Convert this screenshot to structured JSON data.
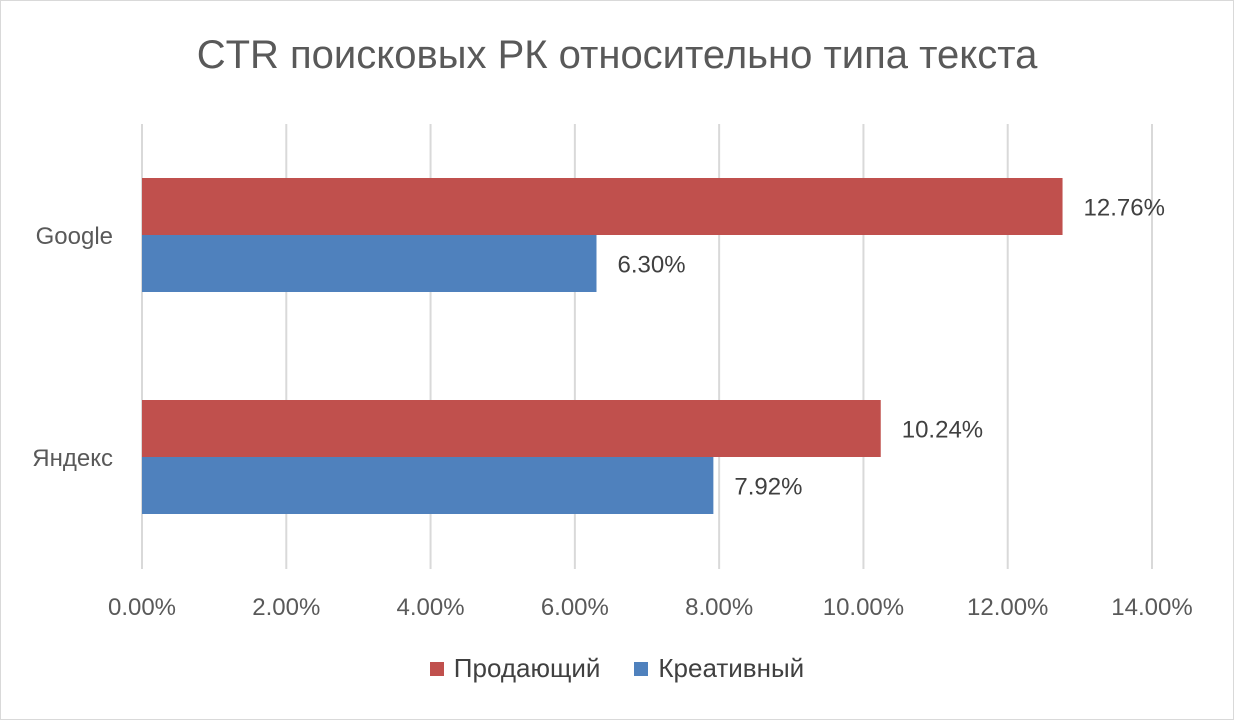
{
  "chart_data": {
    "type": "bar",
    "orientation": "horizontal",
    "title": "CTR поисковых РК относительно типа текста",
    "categories": [
      "Google",
      "Яндекс"
    ],
    "series": [
      {
        "name": "Продающий",
        "values": [
          12.76,
          10.24
        ],
        "labels": [
          "12.76%",
          "10.24%"
        ],
        "color": "#c0504d"
      },
      {
        "name": "Креативный",
        "values": [
          6.3,
          7.92
        ],
        "labels": [
          "6.30%",
          "7.92%"
        ],
        "color": "#4f81bd"
      }
    ],
    "xlim": [
      0,
      14
    ],
    "x_ticks": [
      0,
      2,
      4,
      6,
      8,
      10,
      12,
      14
    ],
    "x_tick_labels": [
      "0.00%",
      "2.00%",
      "4.00%",
      "6.00%",
      "8.00%",
      "10.00%",
      "12.00%",
      "14.00%"
    ],
    "grid": true,
    "legend_position": "bottom"
  }
}
